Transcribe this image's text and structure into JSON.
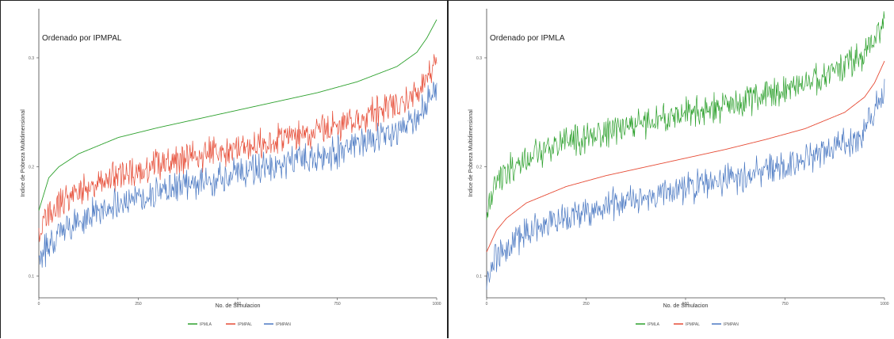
{
  "chart_data": [
    {
      "type": "line",
      "title": "Ordenado por IPMPAL",
      "xlabel": "No. de Simulacion",
      "ylabel": "Indice de Pobreza Multidimensional",
      "x_ticks": [
        "0",
        "250",
        "500",
        "750",
        "1000"
      ],
      "xlim": [
        0,
        1000
      ],
      "y_ticks": [
        "0.1",
        "0.2",
        "0.3"
      ],
      "ylim": [
        0.08,
        0.345
      ],
      "legend_position": "bottom",
      "series": [
        {
          "name": "IPMLA",
          "color": "#2ca02c",
          "noisy": false,
          "x": [
            0,
            25,
            50,
            100,
            200,
            300,
            400,
            500,
            600,
            700,
            800,
            900,
            950,
            975,
            1000
          ],
          "values": [
            0.16,
            0.19,
            0.2,
            0.212,
            0.227,
            0.236,
            0.244,
            0.252,
            0.26,
            0.268,
            0.278,
            0.292,
            0.305,
            0.318,
            0.335
          ]
        },
        {
          "name": "IPMPAL",
          "color": "#e64b35",
          "noisy": true,
          "x": [
            0,
            25,
            50,
            100,
            200,
            300,
            400,
            500,
            600,
            700,
            800,
            900,
            950,
            975,
            1000
          ],
          "values": [
            0.135,
            0.158,
            0.166,
            0.178,
            0.193,
            0.202,
            0.21,
            0.218,
            0.226,
            0.234,
            0.243,
            0.256,
            0.268,
            0.28,
            0.298
          ]
        },
        {
          "name": "IPMPAN",
          "color": "#4a78c2",
          "noisy": true,
          "x": [
            0,
            25,
            50,
            100,
            200,
            300,
            400,
            500,
            600,
            700,
            800,
            900,
            950,
            975,
            1000
          ],
          "values": [
            0.108,
            0.132,
            0.14,
            0.152,
            0.168,
            0.177,
            0.185,
            0.193,
            0.201,
            0.209,
            0.219,
            0.232,
            0.245,
            0.258,
            0.278
          ]
        }
      ]
    },
    {
      "type": "line",
      "title": "Ordenado por IPMLA",
      "xlabel": "No. de Simulacion",
      "ylabel": "Indice de Pobreza Multidimensional",
      "x_ticks": [
        "0",
        "250",
        "500",
        "750",
        "1000"
      ],
      "xlim": [
        0,
        1000
      ],
      "y_ticks": [
        "0.1",
        "0.2",
        "0.3"
      ],
      "ylim": [
        0.08,
        0.345
      ],
      "legend_position": "bottom",
      "series": [
        {
          "name": "IPMLA",
          "color": "#2ca02c",
          "noisy": true,
          "x": [
            0,
            25,
            50,
            100,
            200,
            300,
            400,
            500,
            600,
            700,
            800,
            900,
            950,
            975,
            1000
          ],
          "values": [
            0.16,
            0.185,
            0.195,
            0.207,
            0.222,
            0.232,
            0.24,
            0.248,
            0.256,
            0.265,
            0.276,
            0.291,
            0.305,
            0.318,
            0.335
          ]
        },
        {
          "name": "IPMPAL",
          "color": "#e64b35",
          "noisy": false,
          "x": [
            0,
            25,
            50,
            100,
            200,
            300,
            400,
            500,
            600,
            700,
            800,
            900,
            950,
            975,
            1000
          ],
          "values": [
            0.122,
            0.142,
            0.153,
            0.167,
            0.182,
            0.192,
            0.2,
            0.208,
            0.216,
            0.225,
            0.235,
            0.25,
            0.264,
            0.277,
            0.297
          ]
        },
        {
          "name": "IPMPAN",
          "color": "#4a78c2",
          "noisy": true,
          "x": [
            0,
            25,
            50,
            100,
            200,
            300,
            400,
            500,
            600,
            700,
            800,
            900,
            950,
            975,
            1000
          ],
          "values": [
            0.095,
            0.118,
            0.127,
            0.14,
            0.154,
            0.164,
            0.172,
            0.18,
            0.188,
            0.197,
            0.207,
            0.221,
            0.235,
            0.25,
            0.275
          ]
        }
      ]
    }
  ]
}
